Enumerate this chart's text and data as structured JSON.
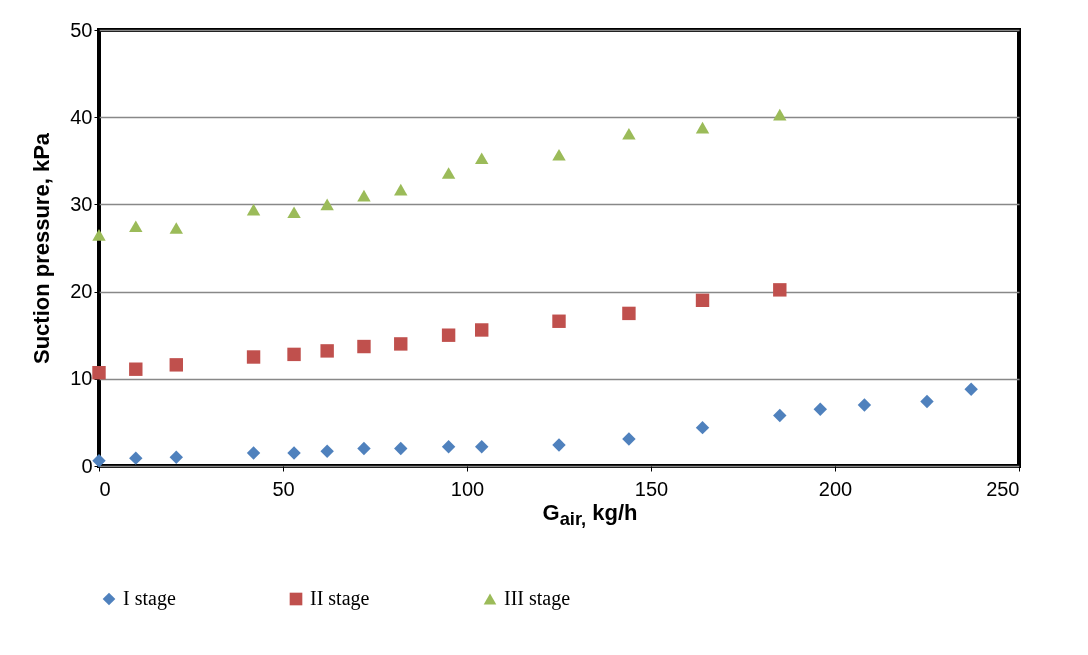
{
  "chart_data": {
    "type": "scatter",
    "xlabel": "G$_{air,}$ kg/h",
    "ylabel": "Suction pressure, kPa",
    "xlim": [
      0,
      250
    ],
    "xticks": [
      0,
      50,
      100,
      150,
      200,
      250
    ],
    "ylim": [
      0,
      50
    ],
    "yticks": [
      0,
      10,
      20,
      30,
      40,
      50
    ],
    "grid": "y",
    "legend": "bottom",
    "series": [
      {
        "name": "I stage",
        "color": "#4f81bd",
        "marker": "diamond",
        "x": [
          0,
          10,
          21,
          42,
          53,
          62,
          72,
          82,
          95,
          104,
          125,
          144,
          164,
          185,
          196,
          208,
          225,
          237
        ],
        "values": [
          0.6,
          0.9,
          1.0,
          1.5,
          1.5,
          1.7,
          2.0,
          2.0,
          2.2,
          2.2,
          2.4,
          3.1,
          4.4,
          5.8,
          6.5,
          7.0,
          7.4,
          8.8
        ]
      },
      {
        "name": "II stage",
        "color": "#c0504d",
        "marker": "square",
        "x": [
          0,
          10,
          21,
          42,
          53,
          62,
          72,
          82,
          95,
          104,
          125,
          144,
          164,
          185
        ],
        "values": [
          10.7,
          11.1,
          11.6,
          12.5,
          12.8,
          13.2,
          13.7,
          14.0,
          15.0,
          15.6,
          16.6,
          17.5,
          19.0,
          20.2
        ]
      },
      {
        "name": "III  stage",
        "color": "#9bbb59",
        "marker": "triangle",
        "x": [
          0,
          10,
          21,
          42,
          53,
          62,
          72,
          82,
          95,
          104,
          125,
          144,
          164,
          185
        ],
        "values": [
          26.5,
          27.5,
          27.3,
          29.4,
          29.1,
          30.0,
          31.0,
          31.7,
          33.6,
          35.3,
          35.7,
          38.1,
          38.8,
          40.3
        ]
      }
    ]
  }
}
